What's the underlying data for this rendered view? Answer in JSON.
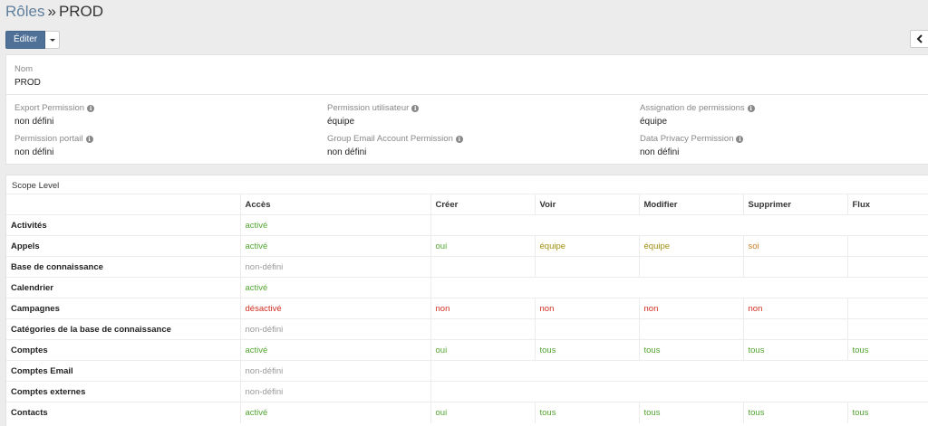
{
  "breadcrumb": {
    "parent": "Rôles",
    "separator": "»",
    "current": "PROD"
  },
  "toolbar": {
    "edit_label": "Éditer"
  },
  "info": {
    "nom_label": "Nom",
    "nom_value": "PROD",
    "fields": [
      {
        "label": "Export Permission",
        "value": "non défini"
      },
      {
        "label": "Permission utilisateur",
        "value": "équipe"
      },
      {
        "label": "Assignation de permissions",
        "value": "équipe"
      },
      {
        "label": "Permission portail",
        "value": "non défini"
      },
      {
        "label": "Group Email Account Permission",
        "value": "non défini"
      },
      {
        "label": "Data Privacy Permission",
        "value": "non défini"
      }
    ]
  },
  "scope": {
    "title": "Scope Level",
    "columns": [
      "Accès",
      "Créer",
      "Voir",
      "Modifier",
      "Supprimer",
      "Flux"
    ],
    "rows": [
      {
        "name": "Activités",
        "acces": "activé",
        "perms": null
      },
      {
        "name": "Appels",
        "acces": "activé",
        "perms": [
          "oui",
          "équipe",
          "équipe",
          "soi",
          ""
        ]
      },
      {
        "name": "Base de connaissance",
        "acces": "non-défini",
        "perms": [
          "",
          "",
          "",
          "",
          ""
        ]
      },
      {
        "name": "Calendrier",
        "acces": "activé",
        "perms": null
      },
      {
        "name": "Campagnes",
        "acces": "désactivé",
        "perms": [
          "non",
          "non",
          "non",
          "non",
          ""
        ]
      },
      {
        "name": "Catégories de la base de connaissance",
        "acces": "non-défini",
        "perms": [
          "",
          "",
          "",
          "",
          ""
        ]
      },
      {
        "name": "Comptes",
        "acces": "activé",
        "perms": [
          "oui",
          "tous",
          "tous",
          "tous",
          "tous"
        ]
      },
      {
        "name": "Comptes Email",
        "acces": "non-défini",
        "perms": null
      },
      {
        "name": "Comptes externes",
        "acces": "non-défini",
        "perms": null
      },
      {
        "name": "Contacts",
        "acces": "activé",
        "perms": [
          "oui",
          "tous",
          "tous",
          "tous",
          "tous"
        ]
      }
    ]
  },
  "colors": {
    "link": "#5f7f9d",
    "primary_button": "#4f7097",
    "green": "#52a531",
    "red": "#cf2d20",
    "olive": "#a08f10",
    "orange": "#c9822a",
    "grey": "#999999"
  }
}
